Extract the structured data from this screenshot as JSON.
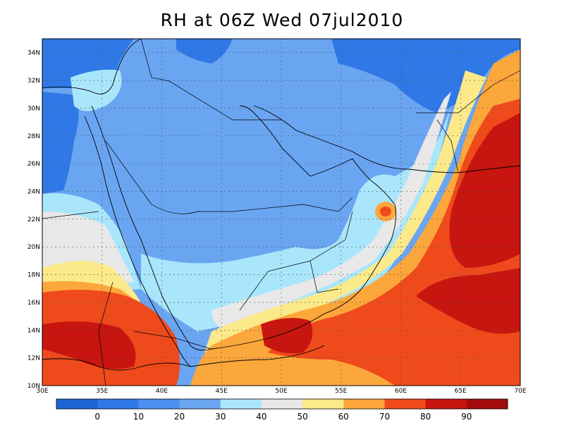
{
  "title": "RH at 06Z Wed 07jul2010",
  "map": {
    "lon_range": [
      30,
      70
    ],
    "lat_range": [
      10,
      35
    ],
    "lon_ticks": [
      "30E",
      "35E",
      "40E",
      "45E",
      "50E",
      "55E",
      "60E",
      "65E",
      "70E"
    ],
    "lat_ticks": [
      "10N",
      "12N",
      "14N",
      "16N",
      "18N",
      "20N",
      "22N",
      "24N",
      "26N",
      "28N",
      "30N",
      "32N",
      "34N"
    ],
    "grid": true
  },
  "colorbar": {
    "labels": [
      "0",
      "10",
      "20",
      "30",
      "40",
      "50",
      "60",
      "70",
      "80",
      "90"
    ],
    "colors": [
      "#1f63d6",
      "#2f78e6",
      "#4c8fee",
      "#6aa5f2",
      "#a9e6fb",
      "#e8e8e8",
      "#fce98a",
      "#fca73b",
      "#ef4a1c",
      "#c9150f",
      "#a30c0c"
    ]
  },
  "colors": {
    "rh_0_10": "#1f63d6",
    "rh_10_20": "#2f78e6",
    "rh_20_30": "#4c8fee",
    "rh_30_40": "#6aa5f2",
    "rh_40_50": "#a9e6fb",
    "rh_50_60": "#e8e8e8",
    "rh_60_70": "#fce98a",
    "rh_70_80": "#fca73b",
    "rh_80_90": "#ef4a1c",
    "rh_90_100": "#c9150f"
  }
}
